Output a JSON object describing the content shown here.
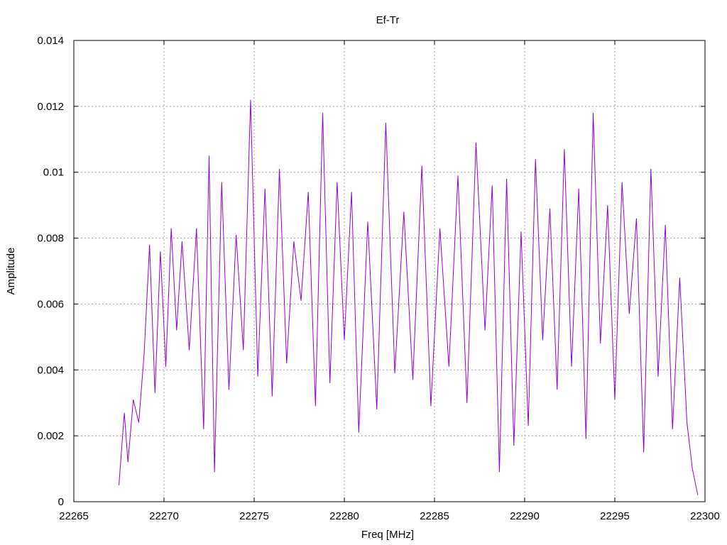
{
  "chart_data": {
    "type": "line",
    "title": "Ef-Tr",
    "xlabel": "Freq [MHz]",
    "ylabel": "Amplitude",
    "xlim": [
      22265,
      22300
    ],
    "ylim": [
      0,
      0.014
    ],
    "x_ticks": [
      "22265",
      "22270",
      "22275",
      "22280",
      "22285",
      "22290",
      "22295",
      "22300"
    ],
    "y_ticks": [
      "0",
      "0.002",
      "0.004",
      "0.006",
      "0.008",
      "0.01",
      "0.012",
      "0.014"
    ],
    "grid": true,
    "line_color": "#9400d3",
    "series": [
      {
        "x": [
          22267.5,
          22267.8,
          22268.0,
          22268.3,
          22268.6,
          22268.9,
          22269.2,
          22269.5,
          22269.8,
          22270.1,
          22270.4,
          22270.7,
          22271.0,
          22271.4,
          22271.8,
          22272.2,
          22272.5,
          22272.8,
          22273.2,
          22273.6,
          22274.0,
          22274.4,
          22274.8,
          22275.2,
          22275.6,
          22276.0,
          22276.4,
          22276.8,
          22277.2,
          22277.6,
          22278.0,
          22278.4,
          22278.8,
          22279.2,
          22279.6,
          22280.0,
          22280.4,
          22280.8,
          22281.3,
          22281.8,
          22282.3,
          22282.8,
          22283.3,
          22283.8,
          22284.3,
          22284.8,
          22285.3,
          22285.8,
          22286.3,
          22286.8,
          22287.3,
          22287.8,
          22288.2,
          22288.6,
          22289.0,
          22289.4,
          22289.8,
          22290.2,
          22290.6,
          22291.0,
          22291.4,
          22291.8,
          22292.2,
          22292.6,
          22293.0,
          22293.4,
          22293.8,
          22294.2,
          22294.6,
          22295.0,
          22295.4,
          22295.8,
          22296.2,
          22296.6,
          22297.0,
          22297.4,
          22297.8,
          22298.2,
          22298.6,
          22299.0,
          22299.3,
          22299.6
        ],
        "y": [
          0.0005,
          0.0027,
          0.0012,
          0.0031,
          0.0024,
          0.0045,
          0.0078,
          0.0033,
          0.0076,
          0.0041,
          0.0083,
          0.0052,
          0.0079,
          0.0046,
          0.0083,
          0.0022,
          0.0105,
          0.0009,
          0.0097,
          0.0034,
          0.0081,
          0.0046,
          0.0122,
          0.0038,
          0.0095,
          0.0032,
          0.0101,
          0.0042,
          0.0079,
          0.0061,
          0.0094,
          0.0029,
          0.0118,
          0.0036,
          0.0097,
          0.0049,
          0.0094,
          0.0021,
          0.0085,
          0.0028,
          0.0115,
          0.0039,
          0.0088,
          0.0037,
          0.0102,
          0.0029,
          0.0083,
          0.0041,
          0.0099,
          0.003,
          0.0109,
          0.0052,
          0.0096,
          0.0009,
          0.0098,
          0.0017,
          0.0082,
          0.0023,
          0.0104,
          0.0049,
          0.0089,
          0.0034,
          0.0107,
          0.0041,
          0.0095,
          0.0019,
          0.0118,
          0.0048,
          0.009,
          0.0031,
          0.0097,
          0.0057,
          0.0086,
          0.0015,
          0.0101,
          0.0038,
          0.0084,
          0.0022,
          0.0068,
          0.0024,
          0.001,
          0.0002
        ]
      }
    ]
  }
}
